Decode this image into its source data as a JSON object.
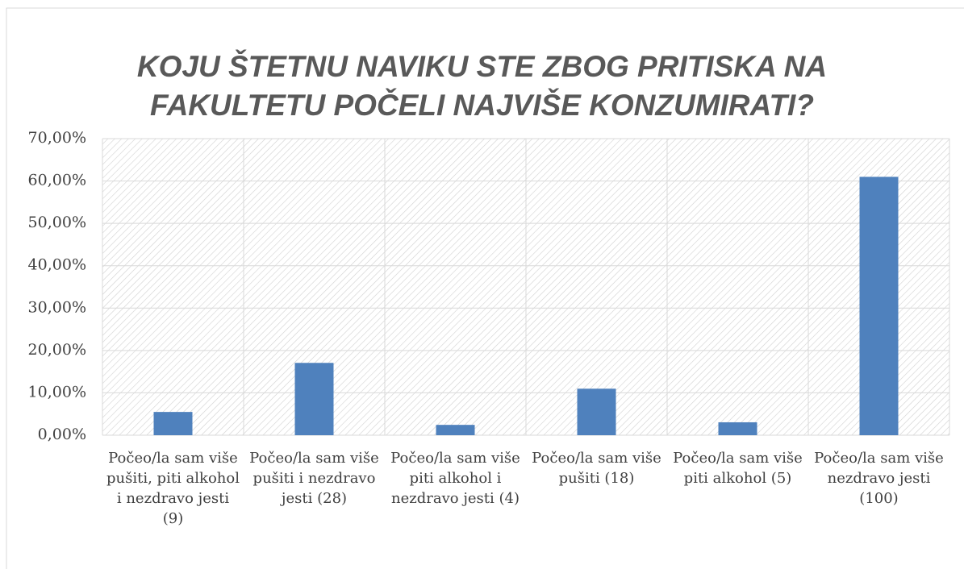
{
  "chart_data": {
    "type": "bar",
    "title": [
      "KOJU ŠTETNU NAVIKU STE ZBOG PRITISKA NA",
      "FAKULTETU POČELI NAJVIŠE KONZUMIRATI?"
    ],
    "categories": [
      "Počeo/la sam više pušiti, piti alkohol i nezdravo jesti (9)",
      "Počeo/la sam više pušiti i nezdravo jesti (28)",
      "Počeo/la sam više piti alkohol i nezdravo jesti (4)",
      "Počeo/la sam više pušiti (18)",
      "Počeo/la sam više piti alkohol (5)",
      "Počeo/la sam više nezdravo jesti (100)"
    ],
    "values": [
      5.49,
      17.07,
      2.44,
      10.98,
      3.05,
      60.98
    ],
    "color": "#4f81bd",
    "ylim": [
      0,
      70
    ],
    "yticks": [
      {
        "value": 0,
        "label": "0,00%"
      },
      {
        "value": 10,
        "label": "10,00%"
      },
      {
        "value": 20,
        "label": "20,00%"
      },
      {
        "value": 30,
        "label": "30,00%"
      },
      {
        "value": 40,
        "label": "40,00%"
      },
      {
        "value": 50,
        "label": "50,00%"
      },
      {
        "value": 60,
        "label": "60,00%"
      },
      {
        "value": 70,
        "label": "70,00%"
      }
    ],
    "grid": true
  }
}
